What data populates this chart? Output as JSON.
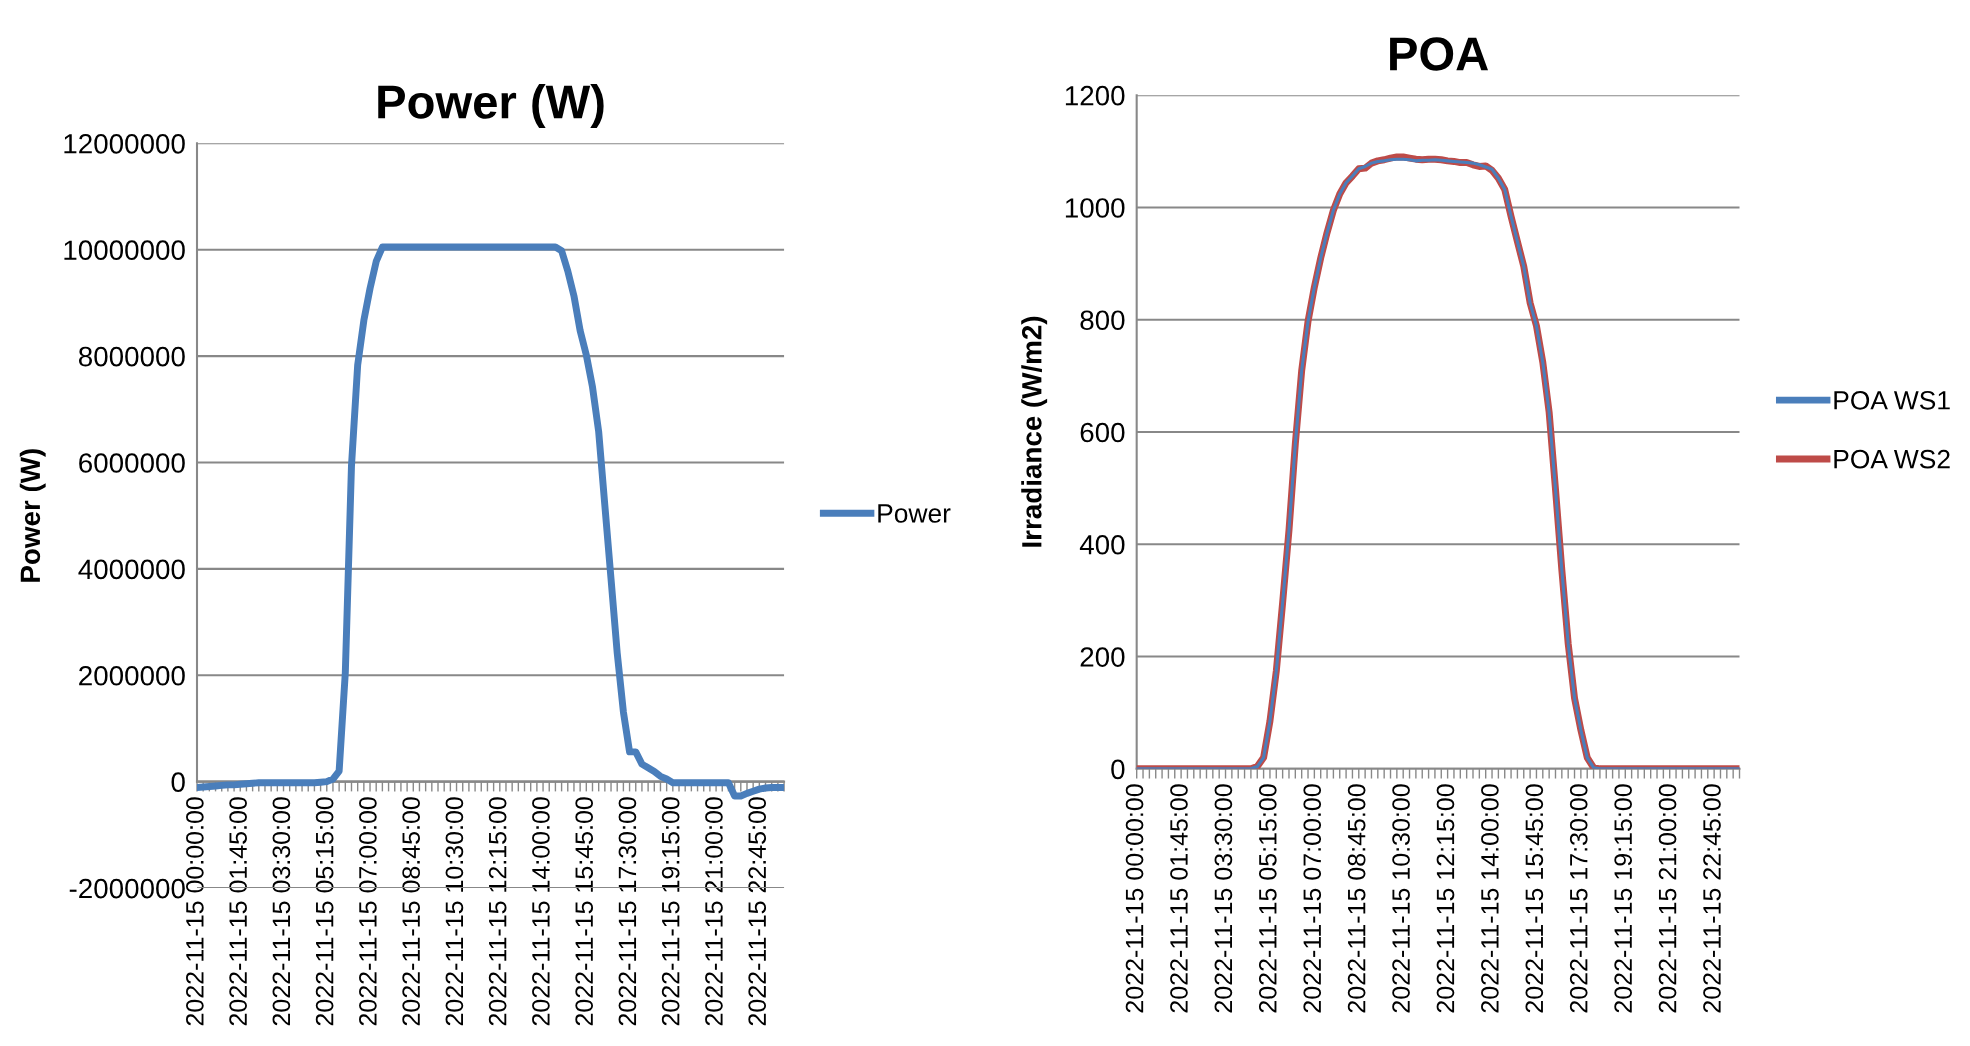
{
  "chart_data": [
    {
      "type": "line",
      "title": "Power (W)",
      "ylabel": "Power (W)",
      "legend": "right",
      "grid": "y",
      "marker": "none",
      "line_style": "solid",
      "categories": [
        "2022-11-15 00:00:00",
        null,
        null,
        null,
        null,
        null,
        null,
        "2022-11-15 01:45:00",
        null,
        null,
        null,
        null,
        null,
        null,
        "2022-11-15 03:30:00",
        null,
        null,
        null,
        null,
        null,
        null,
        "2022-11-15 05:15:00",
        null,
        null,
        null,
        null,
        null,
        null,
        "2022-11-15 07:00:00",
        null,
        null,
        null,
        null,
        null,
        null,
        "2022-11-15 08:45:00",
        null,
        null,
        null,
        null,
        null,
        null,
        "2022-11-15 10:30:00",
        null,
        null,
        null,
        null,
        null,
        null,
        "2022-11-15 12:15:00",
        null,
        null,
        null,
        null,
        null,
        null,
        "2022-11-15 14:00:00",
        null,
        null,
        null,
        null,
        null,
        null,
        "2022-11-15 15:45:00",
        null,
        null,
        null,
        null,
        null,
        null,
        "2022-11-15 17:30:00",
        null,
        null,
        null,
        null,
        null,
        null,
        "2022-11-15 19:15:00",
        null,
        null,
        null,
        null,
        null,
        null,
        "2022-11-15 21:00:00",
        null,
        null,
        null,
        null,
        null,
        null,
        "2022-11-15 22:45:00",
        null,
        null,
        null,
        null
      ],
      "ylim": [
        -2000000,
        12000000
      ],
      "yticks": [
        -2000000,
        0,
        2000000,
        4000000,
        6000000,
        8000000,
        10000000,
        12000000
      ],
      "series": [
        {
          "name": "Power",
          "color": "#4a7ebb",
          "values": [
            -110000,
            -100000,
            -90000,
            -80000,
            -70000,
            -60000,
            -60000,
            -50000,
            -40000,
            -30000,
            -20000,
            -20000,
            -20000,
            -20000,
            -20000,
            -20000,
            -20000,
            -20000,
            -20000,
            -20000,
            -10000,
            0,
            50000,
            200000,
            2050000,
            5940000,
            7830000,
            8670000,
            9270000,
            9780000,
            10050000,
            10050000,
            10050000,
            10050000,
            10050000,
            10050000,
            10050000,
            10050000,
            10050000,
            10050000,
            10050000,
            10050000,
            10050000,
            10050000,
            10050000,
            10050000,
            10050000,
            10050000,
            10050000,
            10050000,
            10050000,
            10050000,
            10050000,
            10050000,
            10050000,
            10050000,
            10050000,
            10050000,
            10050000,
            9980000,
            9600000,
            9130000,
            8480000,
            8020000,
            7420000,
            6580000,
            5190000,
            3810000,
            2420000,
            1310000,
            560000,
            560000,
            330000,
            260000,
            190000,
            100000,
            50000,
            -20000,
            -20000,
            -20000,
            -20000,
            -20000,
            -20000,
            -20000,
            -20000,
            -20000,
            -20000,
            -270000,
            -270000,
            -220000,
            -180000,
            -140000,
            -120000,
            -110000,
            -110000,
            -110000
          ]
        }
      ]
    },
    {
      "type": "line",
      "title": "POA",
      "ylabel": "Irradiance (W/m2)",
      "legend": "right",
      "grid": "y",
      "marker": "none",
      "line_style": "solid",
      "categories": [
        "2022-11-15 00:00:00",
        null,
        null,
        null,
        null,
        null,
        null,
        "2022-11-15 01:45:00",
        null,
        null,
        null,
        null,
        null,
        null,
        "2022-11-15 03:30:00",
        null,
        null,
        null,
        null,
        null,
        null,
        "2022-11-15 05:15:00",
        null,
        null,
        null,
        null,
        null,
        null,
        "2022-11-15 07:00:00",
        null,
        null,
        null,
        null,
        null,
        null,
        "2022-11-15 08:45:00",
        null,
        null,
        null,
        null,
        null,
        null,
        "2022-11-15 10:30:00",
        null,
        null,
        null,
        null,
        null,
        null,
        "2022-11-15 12:15:00",
        null,
        null,
        null,
        null,
        null,
        null,
        "2022-11-15 14:00:00",
        null,
        null,
        null,
        null,
        null,
        null,
        "2022-11-15 15:45:00",
        null,
        null,
        null,
        null,
        null,
        null,
        "2022-11-15 17:30:00",
        null,
        null,
        null,
        null,
        null,
        null,
        "2022-11-15 19:15:00",
        null,
        null,
        null,
        null,
        null,
        null,
        "2022-11-15 21:00:00",
        null,
        null,
        null,
        null,
        null,
        null,
        "2022-11-15 22:45:00",
        null,
        null,
        null,
        null
      ],
      "ylim": [
        0,
        1200
      ],
      "yticks": [
        0,
        200,
        400,
        600,
        800,
        1000,
        1200
      ],
      "series": [
        {
          "name": "POA WS1",
          "color": "#4a7ebb",
          "values": [
            0,
            0,
            0,
            0,
            0,
            0,
            0,
            0,
            0,
            0,
            0,
            0,
            0,
            0,
            0,
            0,
            0,
            0,
            0,
            4,
            20,
            85,
            174,
            296,
            425,
            579,
            709,
            797,
            858,
            910,
            955,
            995,
            1024,
            1044,
            1056,
            1069,
            1073,
            1079,
            1082,
            1083,
            1085,
            1086,
            1086,
            1085,
            1083,
            1084,
            1084,
            1085,
            1084,
            1083,
            1082,
            1081,
            1080,
            1079,
            1076,
            1072,
            1068,
            1052,
            1032,
            984,
            939,
            895,
            830,
            789,
            724,
            635,
            498,
            354,
            223,
            126,
            69,
            20,
            2,
            0,
            0,
            0,
            0,
            0,
            0,
            0,
            0,
            0,
            0,
            0,
            0,
            0,
            0,
            0,
            0,
            0,
            0,
            0,
            0,
            0,
            0,
            0
          ]
        },
        {
          "name": "POA WS2",
          "color": "#be4b48",
          "values": [
            0,
            0,
            0,
            0,
            0,
            0,
            0,
            0,
            0,
            0,
            0,
            0,
            0,
            0,
            0,
            0,
            0,
            0,
            0,
            4,
            20,
            85,
            174,
            296,
            425,
            579,
            709,
            797,
            858,
            910,
            955,
            995,
            1024,
            1044,
            1056,
            1069,
            1070,
            1079,
            1083,
            1085,
            1088,
            1090,
            1090,
            1088,
            1086,
            1085,
            1086,
            1086,
            1085,
            1083,
            1082,
            1080,
            1080,
            1076,
            1073,
            1074,
            1066,
            1052,
            1032,
            984,
            939,
            895,
            830,
            789,
            724,
            635,
            498,
            354,
            223,
            126,
            69,
            20,
            2,
            0,
            0,
            0,
            0,
            0,
            0,
            0,
            0,
            0,
            0,
            0,
            0,
            0,
            0,
            0,
            0,
            0,
            0,
            0,
            0,
            0,
            0,
            0
          ]
        }
      ]
    }
  ]
}
